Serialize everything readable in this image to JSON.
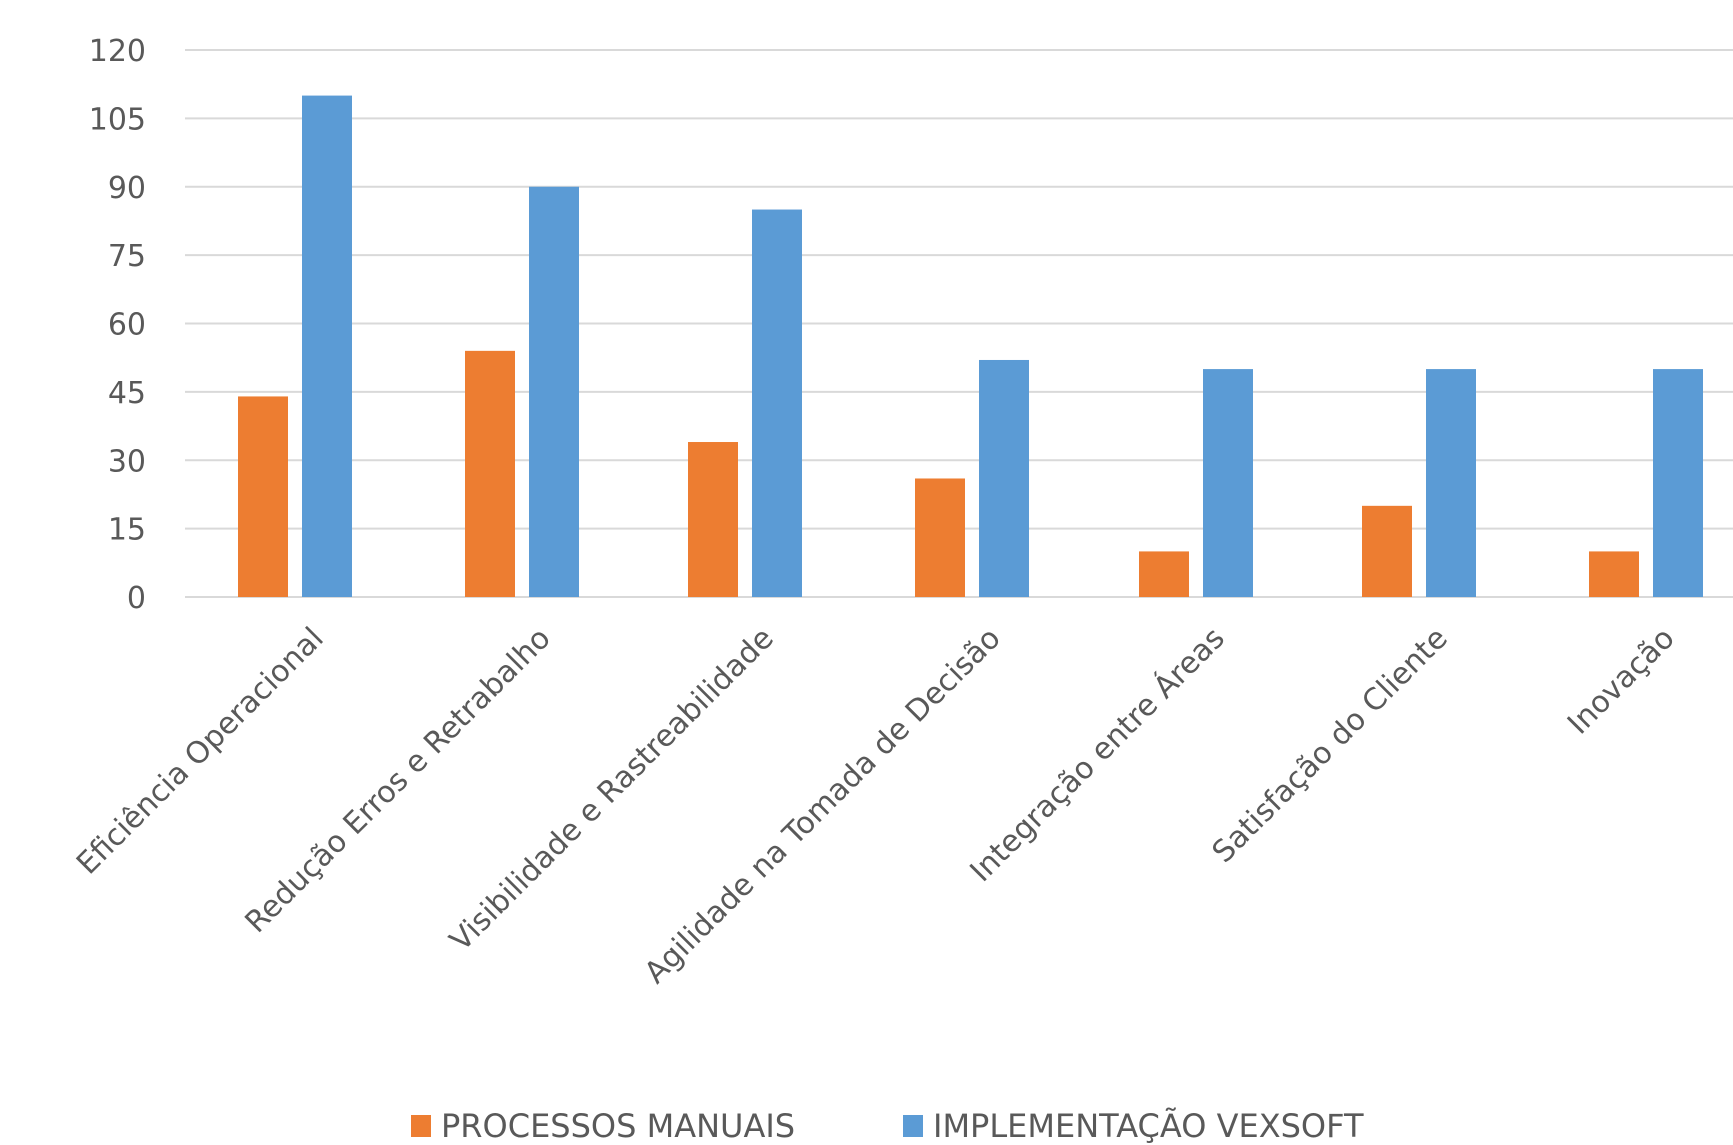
{
  "chart_data": {
    "type": "bar",
    "title": "",
    "xlabel": "",
    "ylabel": "",
    "ylim": [
      0,
      120
    ],
    "yticks": [
      0,
      15,
      30,
      45,
      60,
      75,
      90,
      105,
      120
    ],
    "grid": true,
    "legend_position": "bottom",
    "categories": [
      "Eficiência Operacional",
      "Redução Erros e Retrabalho",
      "Visibilidade e Rastreabilidade",
      "Agilidade na Tomada de Decisão",
      "Integração entre Áreas",
      "Satisfação do Cliente",
      "Inovação"
    ],
    "series": [
      {
        "name": "PROCESSOS MANUAIS",
        "color": "#ed7d31",
        "values": [
          44,
          54,
          34,
          26,
          10,
          20,
          10
        ]
      },
      {
        "name": "IMPLEMENTAÇÃO VEXSOFT",
        "color": "#5b9bd5",
        "values": [
          110,
          90,
          85,
          52,
          50,
          50,
          50
        ]
      }
    ]
  }
}
